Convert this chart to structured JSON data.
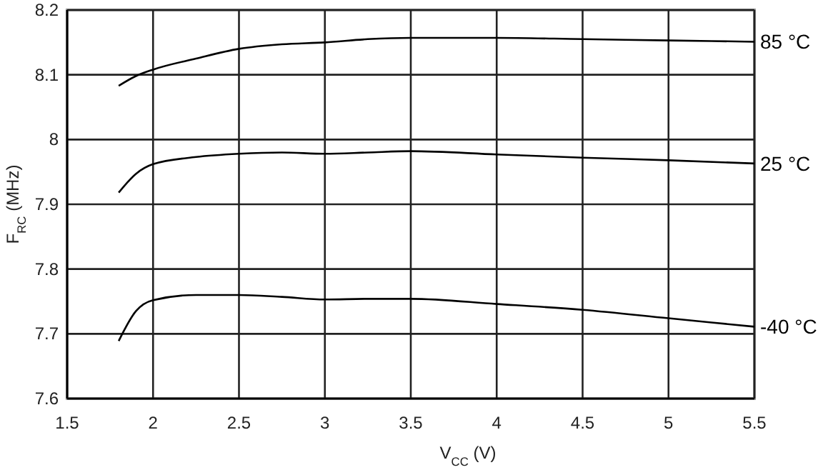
{
  "chart_data": {
    "type": "line",
    "xlabel": "V$_{CC}$ (V)",
    "ylabel": "F$_{RC}$ (MHz)",
    "xlim": [
      1.5,
      5.5
    ],
    "xticks": [
      1.5,
      2,
      2.5,
      3,
      3.5,
      4,
      4.5,
      5,
      5.5
    ],
    "ylim": [
      7.6,
      8.2
    ],
    "yticks": [
      7.6,
      7.7,
      7.8,
      7.9,
      8,
      8.1,
      8.2
    ],
    "grid": true,
    "marker": "none",
    "line_style": "solid",
    "x": [
      1.8,
      1.9,
      2,
      2.25,
      2.5,
      2.75,
      3,
      3.25,
      3.5,
      4,
      4.5,
      5,
      5.5
    ],
    "series": [
      {
        "name": "85 °C",
        "color": "#000000",
        "values": [
          8.083,
          8.098,
          8.108,
          8.125,
          8.14,
          8.147,
          8.15,
          8.155,
          8.157,
          8.157,
          8.155,
          8.153,
          8.151
        ]
      },
      {
        "name": "25 °C",
        "color": "#000000",
        "values": [
          7.918,
          7.947,
          7.962,
          7.973,
          7.978,
          7.98,
          7.978,
          7.98,
          7.982,
          7.977,
          7.972,
          7.968,
          7.963
        ]
      },
      {
        "name": "-40 °C",
        "color": "#000000",
        "values": [
          7.689,
          7.735,
          7.752,
          7.76,
          7.76,
          7.757,
          7.753,
          7.754,
          7.754,
          7.746,
          7.737,
          7.724,
          7.711
        ]
      }
    ]
  }
}
